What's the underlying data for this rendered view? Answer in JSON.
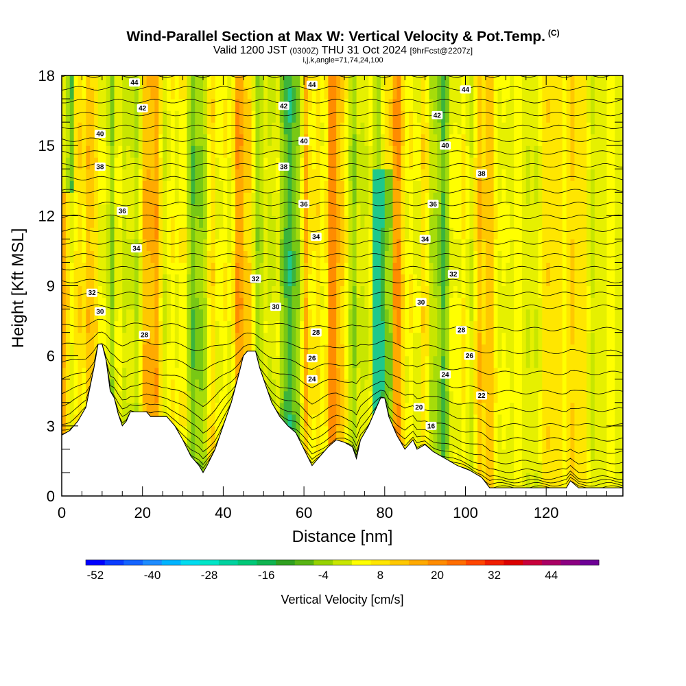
{
  "chart_data": {
    "type": "heatmap",
    "title": "Wind-Parallel Section at Max W: Vertical Velocity & Pot.Temp.",
    "title_mark": "(C)",
    "subtitle_valid": "Valid 1200 JST",
    "subtitle_utc": "(0300Z)",
    "subtitle_date": "THU 31 Oct 2024",
    "subtitle_fcst": "[9hrFcst@2207z]",
    "info_line": "i,j,k,angle=71,74,24,100",
    "xlabel": "Distance [nm]",
    "ylabel": "Height [Kft MSL]",
    "xlim": [
      0,
      139
    ],
    "ylim": [
      0,
      18
    ],
    "x_ticks": [
      0,
      20,
      40,
      60,
      80,
      100,
      120
    ],
    "y_ticks": [
      0,
      3,
      6,
      9,
      12,
      15,
      18
    ],
    "colorbar": {
      "label": "Vertical Velocity [cm/s]",
      "tick_labels": [
        "-52",
        "-40",
        "-28",
        "-16",
        "-4",
        "8",
        "20",
        "32",
        "44"
      ],
      "colors": [
        "#0000ff",
        "#0a3cff",
        "#1464ff",
        "#1e8cff",
        "#00b4ff",
        "#00dcf0",
        "#00e6c8",
        "#00d2a0",
        "#00c878",
        "#10b450",
        "#30a020",
        "#58b414",
        "#96d200",
        "#c8e600",
        "#ffff00",
        "#ffe600",
        "#ffc800",
        "#ffaa00",
        "#ff8c00",
        "#ff6e00",
        "#ff4600",
        "#f01e00",
        "#dc0000",
        "#c8003c",
        "#aa0064",
        "#8c0082",
        "#6e0096"
      ]
    },
    "pot_temp_contour_labels": [
      {
        "value": "44",
        "x": 18,
        "y": 17.7
      },
      {
        "value": "44",
        "x": 62,
        "y": 17.6
      },
      {
        "value": "44",
        "x": 100,
        "y": 17.4
      },
      {
        "value": "42",
        "x": 20,
        "y": 16.6
      },
      {
        "value": "42",
        "x": 55,
        "y": 16.7
      },
      {
        "value": "42",
        "x": 93,
        "y": 16.3
      },
      {
        "value": "40",
        "x": 9.5,
        "y": 15.5
      },
      {
        "value": "40",
        "x": 60,
        "y": 15.2
      },
      {
        "value": "40",
        "x": 95,
        "y": 15.0
      },
      {
        "value": "38",
        "x": 9.5,
        "y": 14.1
      },
      {
        "value": "38",
        "x": 55,
        "y": 14.1
      },
      {
        "value": "38",
        "x": 104,
        "y": 13.8
      },
      {
        "value": "36",
        "x": 15,
        "y": 12.2
      },
      {
        "value": "36",
        "x": 60,
        "y": 12.5
      },
      {
        "value": "36",
        "x": 92,
        "y": 12.5
      },
      {
        "value": "34",
        "x": 18.5,
        "y": 10.6
      },
      {
        "value": "34",
        "x": 63,
        "y": 11.1
      },
      {
        "value": "34",
        "x": 90,
        "y": 11.0
      },
      {
        "value": "32",
        "x": 7.5,
        "y": 8.7
      },
      {
        "value": "32",
        "x": 48,
        "y": 9.3
      },
      {
        "value": "32",
        "x": 97,
        "y": 9.5
      },
      {
        "value": "30",
        "x": 9.5,
        "y": 7.9
      },
      {
        "value": "30",
        "x": 53,
        "y": 8.1
      },
      {
        "value": "30",
        "x": 89,
        "y": 8.3
      },
      {
        "value": "28",
        "x": 20.5,
        "y": 6.9
      },
      {
        "value": "28",
        "x": 63,
        "y": 7.0
      },
      {
        "value": "28",
        "x": 99,
        "y": 7.1
      },
      {
        "value": "26",
        "x": 62,
        "y": 5.9
      },
      {
        "value": "26",
        "x": 101,
        "y": 6.0
      },
      {
        "value": "24",
        "x": 62,
        "y": 5.0
      },
      {
        "value": "24",
        "x": 95,
        "y": 5.2
      },
      {
        "value": "22",
        "x": 104,
        "y": 4.3
      },
      {
        "value": "20",
        "x": 88.5,
        "y": 3.8
      },
      {
        "value": "16",
        "x": 91.5,
        "y": 3.0
      }
    ],
    "terrain_height_kft": [
      [
        0,
        2.6
      ],
      [
        2,
        2.8
      ],
      [
        4,
        3.2
      ],
      [
        6,
        3.8
      ],
      [
        8,
        5.5
      ],
      [
        9,
        6.5
      ],
      [
        10,
        6.5
      ],
      [
        11,
        5.8
      ],
      [
        12,
        4.5
      ],
      [
        13,
        4.2
      ],
      [
        14,
        3.5
      ],
      [
        15,
        3.0
      ],
      [
        16,
        3.2
      ],
      [
        17,
        3.6
      ],
      [
        21,
        3.6
      ],
      [
        22,
        3.4
      ],
      [
        26,
        3.4
      ],
      [
        28,
        3.0
      ],
      [
        30,
        2.4
      ],
      [
        32,
        1.7
      ],
      [
        34,
        1.3
      ],
      [
        35,
        1.0
      ],
      [
        36,
        1.3
      ],
      [
        38,
        2.0
      ],
      [
        40,
        3.0
      ],
      [
        42,
        4.0
      ],
      [
        44,
        5.3
      ],
      [
        45,
        6.0
      ],
      [
        46,
        6.2
      ],
      [
        48,
        6.2
      ],
      [
        49,
        5.5
      ],
      [
        50,
        5.0
      ],
      [
        52,
        4.0
      ],
      [
        54,
        3.4
      ],
      [
        55,
        3.2
      ],
      [
        56,
        3.0
      ],
      [
        58,
        2.7
      ],
      [
        60,
        2.0
      ],
      [
        62,
        1.3
      ],
      [
        64,
        1.7
      ],
      [
        66,
        2.1
      ],
      [
        68,
        2.4
      ],
      [
        70,
        2.3
      ],
      [
        72,
        2.1
      ],
      [
        73,
        1.6
      ],
      [
        74,
        2.4
      ],
      [
        76,
        3.0
      ],
      [
        78,
        3.8
      ],
      [
        79,
        4.2
      ],
      [
        80,
        4.2
      ],
      [
        81,
        3.4
      ],
      [
        83,
        2.6
      ],
      [
        85,
        2.0
      ],
      [
        87,
        2.4
      ],
      [
        88,
        2.0
      ],
      [
        90,
        2.2
      ],
      [
        92,
        1.9
      ],
      [
        95,
        1.6
      ],
      [
        98,
        1.3
      ],
      [
        101,
        1.1
      ],
      [
        104,
        0.8
      ],
      [
        106,
        0.35
      ],
      [
        110,
        0.35
      ],
      [
        118,
        0.35
      ],
      [
        125,
        0.35
      ],
      [
        126,
        0.65
      ],
      [
        128,
        0.35
      ],
      [
        139,
        0.35
      ]
    ]
  }
}
